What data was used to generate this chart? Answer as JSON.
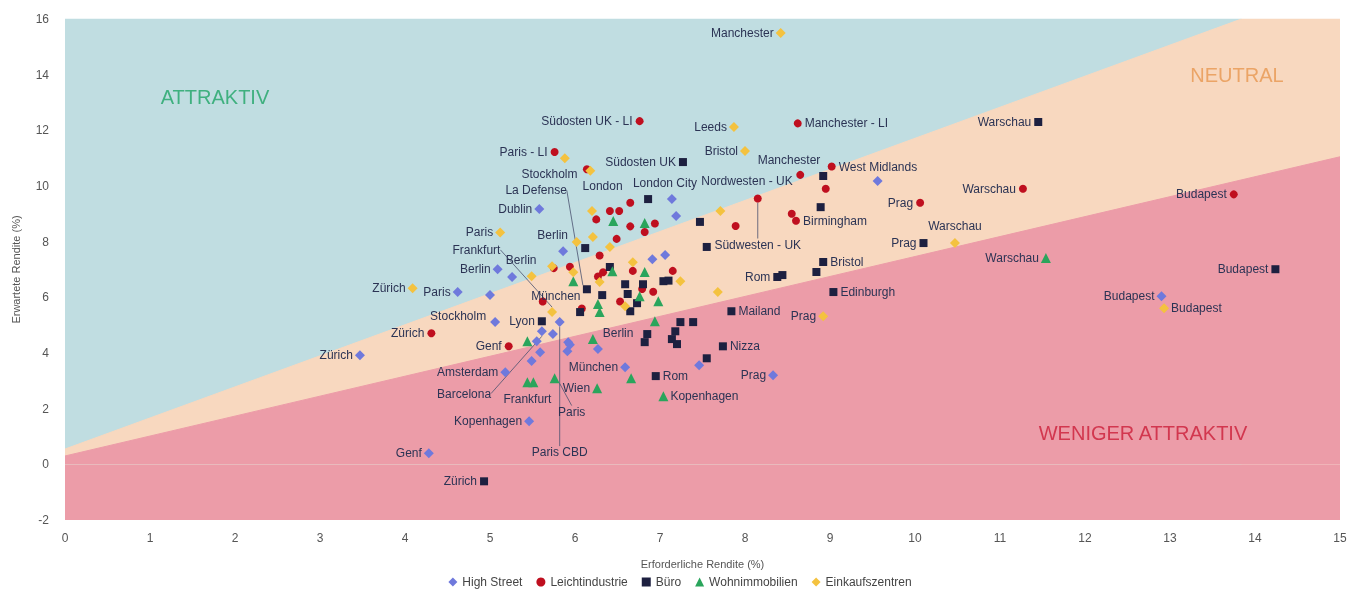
{
  "chart_data": {
    "type": "scatter",
    "xlabel": "Erforderliche Rendite (%)",
    "ylabel": "Erwartete Rendite (%)",
    "xlim": [
      0,
      15
    ],
    "ylim": [
      -2,
      16
    ],
    "xticks": [
      0,
      1,
      2,
      3,
      4,
      5,
      6,
      7,
      8,
      9,
      10,
      11,
      12,
      13,
      14,
      15
    ],
    "yticks": [
      -2,
      0,
      2,
      4,
      6,
      8,
      10,
      12,
      14,
      16
    ],
    "grid": false,
    "legend": "bottom",
    "annotations": [
      "ATTRAKTIV",
      "NEUTRAL",
      "WENIGER ATTRAKTIV"
    ],
    "bands": [
      {
        "axis": "y",
        "from": -2,
        "to": 0,
        "color": "#ec9ca8"
      }
    ],
    "series": [
      {
        "type": "area",
        "color": "#c0dde1",
        "x": [
          0,
          13.84
        ],
        "values": [
          16,
          16
        ]
      },
      {
        "type": "area",
        "color": "#f8d8bf",
        "x": [
          0,
          13.84,
          15
        ],
        "values": [
          0.55,
          16,
          16
        ]
      },
      {
        "type": "area",
        "color": "#ec9ca8",
        "x": [
          0,
          15
        ],
        "values": [
          0.3,
          11.05
        ]
      },
      {
        "name": "High Street",
        "color": "#6f79dc",
        "marker": "diamond",
        "x": [
          5.58,
          7.14,
          7.19,
          9.56,
          5.86,
          6.91,
          7.06,
          5.09,
          5.26,
          4.62,
          5.0,
          5.06,
          5.82,
          5.61,
          5.74,
          5.55,
          5.92,
          5.59,
          5.49,
          5.91,
          6.27,
          6.59,
          5.18,
          7.46,
          8.33,
          12.9,
          4.28,
          5.46,
          3.47,
          5.94
        ],
        "values": [
          9.17,
          9.53,
          8.92,
          10.18,
          7.66,
          7.37,
          7.52,
          7.01,
          6.73,
          6.19,
          6.08,
          5.11,
          5.11,
          4.78,
          4.68,
          4.42,
          4.39,
          4.03,
          3.71,
          4.06,
          4.14,
          3.49,
          3.31,
          3.56,
          3.2,
          6.04,
          0.4,
          1.55,
          3.92,
          4.3
        ],
        "value_labels": [
          "Dublin",
          null,
          null,
          null,
          "Berlin",
          null,
          null,
          "Berlin",
          null,
          "Paris",
          null,
          "Stockholm",
          "Paris CBD",
          "Barcelona",
          null,
          null,
          null,
          null,
          null,
          null,
          null,
          "München",
          "Amsterdam",
          null,
          "Prag",
          "Budapest",
          "Genf",
          "Kopenhagen",
          "Zürich",
          null
        ]
      },
      {
        "name": "Leichtindustrie",
        "color": "#bf0f1f",
        "marker": "circle",
        "x": [
          5.76,
          6.76,
          8.62,
          9.02,
          8.65,
          8.95,
          8.15,
          8.55,
          8.6,
          7.89,
          10.06,
          11.27,
          13.75,
          6.65,
          6.41,
          6.52,
          6.25,
          6.65,
          6.82,
          6.94,
          6.49,
          6.29,
          6.27,
          6.33,
          6.68,
          7.15,
          6.92,
          5.62,
          6.08,
          6.53,
          5.22,
          4.31,
          5.94,
          6.14,
          5.75,
          6.79
        ],
        "values": [
          11.22,
          12.33,
          12.25,
          10.7,
          10.4,
          9.9,
          9.55,
          9.0,
          8.75,
          8.56,
          9.4,
          9.9,
          9.7,
          9.4,
          9.1,
          9.1,
          8.8,
          8.55,
          8.35,
          8.65,
          8.1,
          7.5,
          6.75,
          6.9,
          6.95,
          6.95,
          6.2,
          5.85,
          5.6,
          5.85,
          4.24,
          4.71,
          7.1,
          10.6,
          7.05,
          6.3
        ],
        "value_labels": [
          "Paris - LI",
          "Südosten UK - LI",
          "Manchester - LI",
          "West Midlands",
          "Nordwesten - UK",
          null,
          "Südwesten - UK",
          null,
          "Birmingham",
          null,
          "Prag",
          "Warschau",
          "Budapest",
          null,
          null,
          null,
          null,
          null,
          null,
          null,
          null,
          null,
          null,
          null,
          null,
          null,
          null,
          null,
          "München",
          null,
          "Genf",
          "Zürich",
          null,
          null,
          null,
          null
        ]
      },
      {
        "name": "Büro",
        "color": "#1d2040",
        "marker": "square",
        "x": [
          7.27,
          6.86,
          7.47,
          7.55,
          6.12,
          6.41,
          6.14,
          6.32,
          6.59,
          6.62,
          6.73,
          6.65,
          6.8,
          7.04,
          7.1,
          6.06,
          5.61,
          7.24,
          7.18,
          7.14,
          7.2,
          7.39,
          6.85,
          6.82,
          7.84,
          7.74,
          7.55,
          6.95,
          8.38,
          8.44,
          11.45,
          8.92,
          8.89,
          10.1,
          8.92,
          8.84,
          9.04,
          14.24,
          4.93
        ],
        "values": [
          10.86,
          9.53,
          8.71,
          7.81,
          7.77,
          7.09,
          6.29,
          6.08,
          6.47,
          6.12,
          5.79,
          5.5,
          6.47,
          6.58,
          6.6,
          5.47,
          5.14,
          5.11,
          4.78,
          4.5,
          4.32,
          5.11,
          4.68,
          4.39,
          5.5,
          4.24,
          3.81,
          3.17,
          6.73,
          6.8,
          12.3,
          10.36,
          9.24,
          7.95,
          7.27,
          6.91,
          6.19,
          7.01,
          -0.61
        ],
        "value_labels": [
          "Südosten UK",
          "London City",
          null,
          null,
          null,
          null,
          "La Defense",
          null,
          null,
          null,
          null,
          null,
          null,
          null,
          null,
          null,
          "Lyon",
          null,
          null,
          null,
          null,
          null,
          null,
          null,
          "Mailand",
          "Nizza",
          null,
          "Rom",
          "Rom",
          null,
          "Warschau",
          "Manchester",
          null,
          "Prag",
          "Bristol",
          null,
          "Edinburgh",
          "Budapest",
          "Zürich"
        ]
      },
      {
        "name": "Wohnimmobilien",
        "color": "#2aa55c",
        "marker": "triangle",
        "x": [
          6.45,
          6.82,
          5.98,
          6.44,
          6.82,
          6.76,
          6.98,
          6.27,
          6.29,
          6.94,
          5.44,
          6.21,
          6.66,
          6.26,
          5.76,
          5.44,
          5.51,
          7.04,
          11.54
        ],
        "values": [
          8.74,
          8.67,
          6.58,
          6.94,
          6.91,
          6.04,
          5.86,
          5.76,
          5.47,
          5.14,
          4.42,
          4.5,
          3.09,
          2.73,
          3.09,
          2.95,
          2.95,
          2.45,
          7.41
        ],
        "value_labels": [
          null,
          null,
          null,
          null,
          null,
          null,
          null,
          null,
          null,
          null,
          null,
          "Berlin",
          null,
          "Wien",
          "Paris",
          "Frankfurt",
          null,
          "Kopenhagen",
          "Warschau"
        ]
      },
      {
        "name": "Einkaufszentren",
        "color": "#f4c23f",
        "marker": "diamond",
        "x": [
          8.42,
          7.87,
          8.0,
          5.88,
          6.18,
          5.12,
          7.71,
          6.2,
          6.02,
          6.21,
          6.41,
          5.73,
          5.49,
          5.98,
          6.68,
          7.24,
          5.73,
          7.68,
          4.09,
          6.59,
          6.29,
          10.47,
          8.92,
          12.93
        ],
        "values": [
          15.5,
          12.12,
          11.26,
          11.0,
          10.55,
          8.33,
          9.1,
          9.1,
          7.99,
          8.17,
          7.81,
          7.12,
          6.76,
          6.9,
          7.26,
          6.58,
          5.47,
          6.19,
          6.33,
          5.68,
          6.55,
          7.95,
          5.32,
          5.61
        ],
        "value_labels": [
          "Manchester",
          "Leeds",
          "Bristol",
          "Stockholm",
          "London",
          "Paris",
          null,
          null,
          null,
          null,
          null,
          null,
          "Berlin",
          null,
          null,
          null,
          "Frankfurt",
          null,
          "Zürich",
          null,
          null,
          "Warschau",
          "Prag",
          "Budapest"
        ]
      }
    ]
  }
}
